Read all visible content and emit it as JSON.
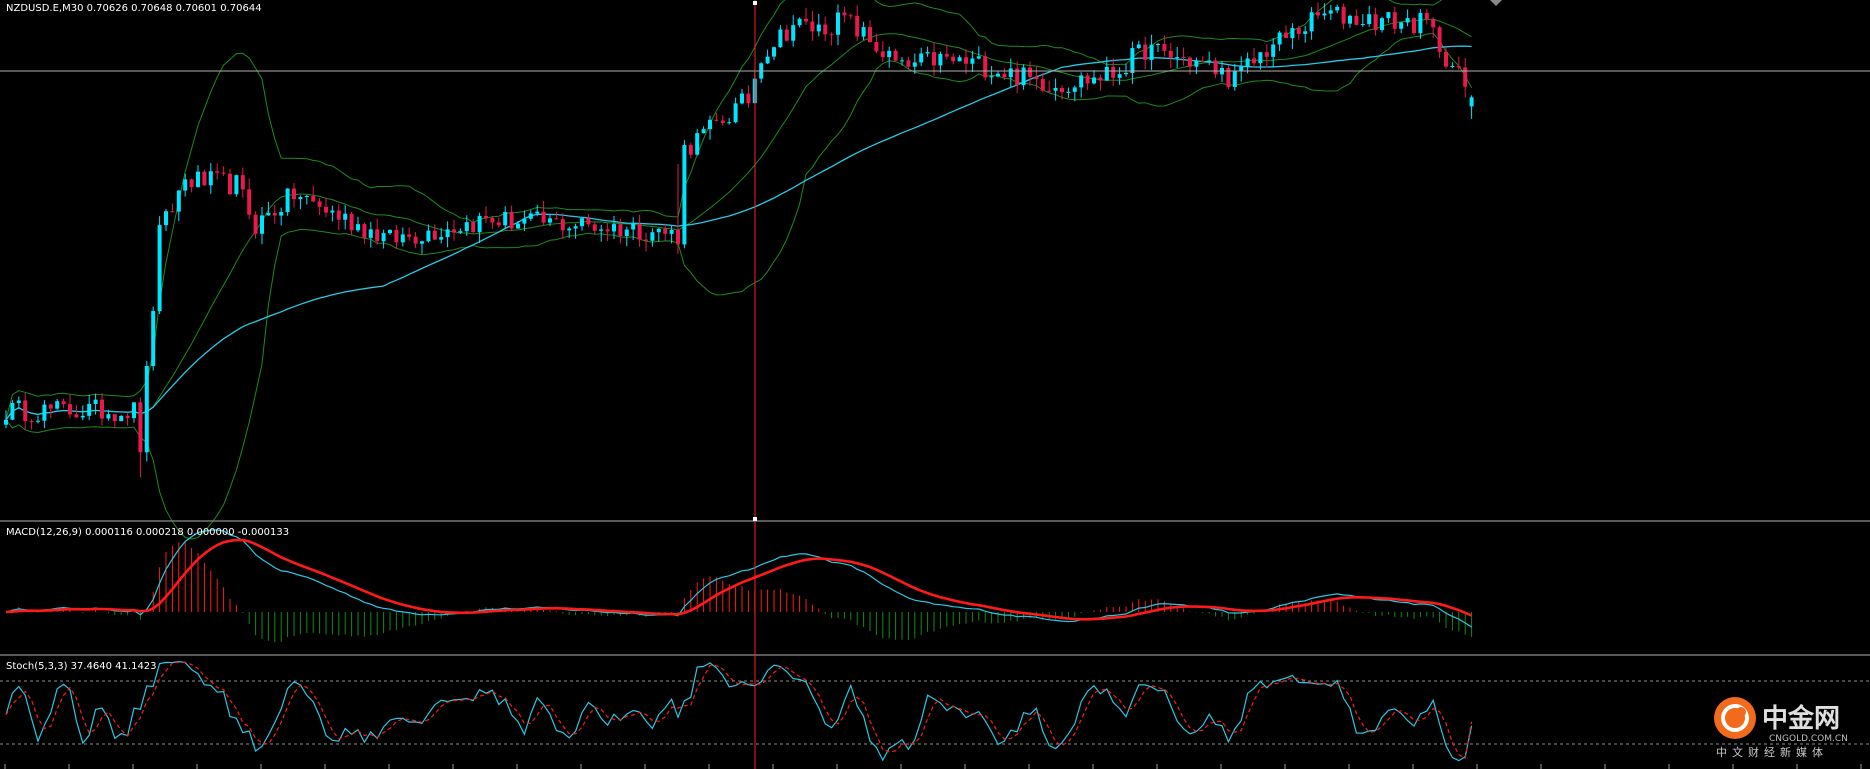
{
  "price_panel": {
    "header": "NZDUSD.E,M30  0.70626 0.70648 0.70601 0.70644",
    "colors": {
      "bull": "#00e5ff",
      "bear": "#e8194b",
      "bands": "#1e8a1e",
      "ma": "#27c9e6",
      "hline": "#b0b0b0",
      "crosshair": "#ff2020"
    }
  },
  "macd_panel": {
    "header": "MACD(12,26,9) 0.000116 0.000218 0.000000 -0.000133",
    "colors": {
      "macd": "#27c9e6",
      "signal": "#ff1a1a",
      "hist_pos": "#ff1a1a",
      "hist_neg": "#138a13"
    }
  },
  "stoch_panel": {
    "header": "Stoch(5,3,3) 37.4640 41.1423",
    "colors": {
      "main": "#27c9e6",
      "signal": "#ff1a1a",
      "levels": "#8c8c8c"
    }
  },
  "watermark": {
    "logo_text": "中金网",
    "domain": "CNGOLD.COM.CN",
    "tagline": "中文财经新媒体"
  },
  "chart_data": [
    {
      "type": "candlestick",
      "series_name": "NZDUSD.E",
      "timeframe": "M30",
      "last_bar": {
        "open": 0.70626,
        "high": 0.70648,
        "low": 0.70601,
        "close": 0.70644
      },
      "ylim": [
        0.6981,
        0.7081
      ],
      "bar_count": 230,
      "close_path": [
        [
          0,
          0.7002
        ],
        [
          20,
          0.7002
        ],
        [
          21,
          0.6995
        ],
        [
          24,
          0.7037
        ],
        [
          28,
          0.7048
        ],
        [
          36,
          0.7047
        ],
        [
          39,
          0.7039
        ],
        [
          45,
          0.7045
        ],
        [
          60,
          0.7036
        ],
        [
          75,
          0.704
        ],
        [
          90,
          0.7039
        ],
        [
          100,
          0.7038
        ],
        [
          105,
          0.7037
        ],
        [
          106,
          0.7054
        ],
        [
          116,
          0.7064
        ],
        [
          118,
          0.7073
        ],
        [
          123,
          0.7079
        ],
        [
          127,
          0.7078
        ],
        [
          131,
          0.708
        ],
        [
          140,
          0.707
        ],
        [
          145,
          0.7072
        ],
        [
          152,
          0.7071
        ],
        [
          160,
          0.7068
        ],
        [
          165,
          0.7067
        ],
        [
          173,
          0.7069
        ],
        [
          178,
          0.7074
        ],
        [
          187,
          0.7071
        ],
        [
          192,
          0.7068
        ],
        [
          197,
          0.7074
        ],
        [
          206,
          0.7081
        ],
        [
          212,
          0.708
        ],
        [
          222,
          0.7079
        ],
        [
          229,
          0.70644
        ]
      ]
    },
    {
      "type": "line",
      "indicator": "MACD",
      "params": [
        12,
        26,
        9
      ],
      "values": {
        "macd": 0.000116,
        "signal": 0.000218,
        "extra_1": 0.0,
        "extra_2": -0.000133
      }
    },
    {
      "type": "line",
      "indicator": "Stochastic",
      "params": [
        5,
        3,
        3
      ],
      "values": {
        "main": 37.464,
        "signal": 41.1423
      },
      "levels": [
        80,
        20
      ]
    }
  ]
}
